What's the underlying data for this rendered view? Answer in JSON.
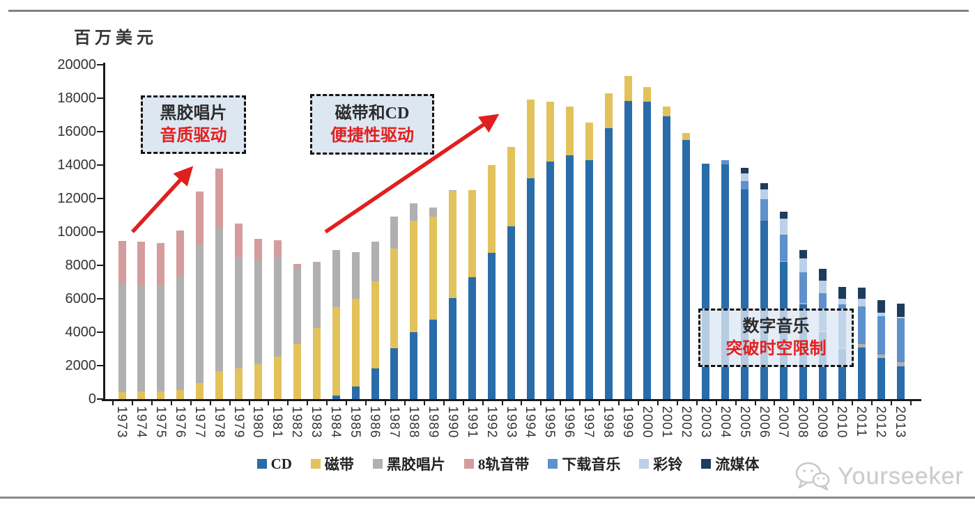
{
  "unit_label": "百万美元",
  "y_axis": {
    "labels": [
      "0",
      "2000",
      "4000",
      "6000",
      "8000",
      "10000",
      "12000",
      "14000",
      "16000",
      "18000",
      "20000"
    ],
    "max": 20000
  },
  "annotations": [
    {
      "id": "vinyl",
      "line1": "黑胶唱片",
      "line2": "音质驱动"
    },
    {
      "id": "tape-cd",
      "line1": "磁带和CD",
      "line2": "便捷性驱动"
    },
    {
      "id": "digital",
      "line1": "数字音乐",
      "line2": "突破时空限制"
    }
  ],
  "watermark": {
    "label": "Yourseeker",
    "icon": "wechat-icon"
  },
  "colors": {
    "accent_red": "#e0201e",
    "axis": "#1a1a1a",
    "annotation_fill": "#dde7f2"
  },
  "chart_data": {
    "type": "bar",
    "stacked": true,
    "title": "",
    "xlabel": "",
    "ylabel": "百万美元",
    "ylim": [
      0,
      20000
    ],
    "grid": false,
    "legend_position": "bottom",
    "categories": [
      "1973",
      "1974",
      "1975",
      "1976",
      "1977",
      "1978",
      "1979",
      "1980",
      "1981",
      "1982",
      "1983",
      "1984",
      "1985",
      "1986",
      "1987",
      "1988",
      "1989",
      "1990",
      "1991",
      "1992",
      "1993",
      "1994",
      "1995",
      "1996",
      "1997",
      "1998",
      "1999",
      "2000",
      "2001",
      "2002",
      "2003",
      "2004",
      "2005",
      "2006",
      "2007",
      "2008",
      "2009",
      "2010",
      "2011",
      "2012",
      "2013"
    ],
    "series": [
      {
        "name": "CD",
        "color": "#2a6ca9",
        "values": [
          0,
          0,
          0,
          0,
          0,
          0,
          0,
          0,
          0,
          0,
          0,
          200,
          750,
          1850,
          3050,
          4000,
          4750,
          6050,
          7300,
          8750,
          10350,
          13200,
          14200,
          14600,
          14300,
          16200,
          17850,
          17800,
          16900,
          15500,
          14100,
          14050,
          12550,
          10650,
          8200,
          5650,
          4000,
          3000,
          3100,
          2450,
          1950
        ]
      },
      {
        "name": "磁带",
        "color": "#e2c25b",
        "values": [
          400,
          450,
          450,
          550,
          950,
          1650,
          1850,
          2100,
          2550,
          3300,
          4250,
          5300,
          5250,
          5200,
          5950,
          6650,
          6150,
          6400,
          5200,
          5250,
          4750,
          4700,
          3600,
          2900,
          2250,
          2100,
          1500,
          850,
          600,
          400,
          0,
          0,
          0,
          0,
          0,
          0,
          0,
          0,
          0,
          0,
          0
        ]
      },
      {
        "name": "黑胶唱片",
        "color": "#b0b0b0",
        "values": [
          6500,
          6400,
          6400,
          6850,
          8300,
          8650,
          6650,
          6250,
          5950,
          4550,
          3900,
          3400,
          2800,
          2350,
          1900,
          1050,
          550,
          50,
          0,
          0,
          0,
          0,
          0,
          0,
          0,
          0,
          0,
          0,
          0,
          0,
          0,
          0,
          0,
          0,
          50,
          100,
          100,
          100,
          200,
          200,
          250
        ]
      },
      {
        "name": "8轨音带",
        "color": "#d49c9c",
        "values": [
          2550,
          2550,
          2500,
          2700,
          3150,
          3500,
          2000,
          1250,
          1000,
          250,
          50,
          0,
          0,
          0,
          0,
          0,
          0,
          0,
          0,
          0,
          0,
          0,
          0,
          0,
          0,
          0,
          0,
          0,
          0,
          0,
          0,
          0,
          0,
          0,
          0,
          0,
          0,
          0,
          0,
          0,
          0
        ]
      },
      {
        "name": "下载音乐",
        "color": "#5e91cb",
        "values": [
          0,
          0,
          0,
          0,
          0,
          0,
          0,
          0,
          0,
          0,
          0,
          0,
          0,
          0,
          0,
          0,
          0,
          0,
          0,
          0,
          0,
          0,
          0,
          0,
          0,
          0,
          0,
          0,
          0,
          0,
          0,
          250,
          500,
          1300,
          1600,
          1850,
          2250,
          2550,
          2250,
          2300,
          2650
        ]
      },
      {
        "name": "彩铃",
        "color": "#bdd0e9",
        "values": [
          0,
          0,
          0,
          0,
          0,
          0,
          0,
          0,
          0,
          0,
          0,
          0,
          0,
          0,
          0,
          0,
          0,
          0,
          0,
          0,
          0,
          0,
          0,
          0,
          0,
          0,
          0,
          0,
          0,
          0,
          0,
          0,
          450,
          600,
          950,
          800,
          750,
          350,
          450,
          200,
          50
        ]
      },
      {
        "name": "流媒体",
        "color": "#1e3d5c",
        "values": [
          0,
          0,
          0,
          0,
          0,
          0,
          0,
          0,
          0,
          0,
          0,
          0,
          0,
          0,
          0,
          0,
          0,
          0,
          0,
          0,
          0,
          0,
          0,
          0,
          0,
          0,
          0,
          0,
          0,
          0,
          0,
          0,
          350,
          350,
          400,
          500,
          700,
          700,
          650,
          750,
          800
        ]
      }
    ]
  }
}
